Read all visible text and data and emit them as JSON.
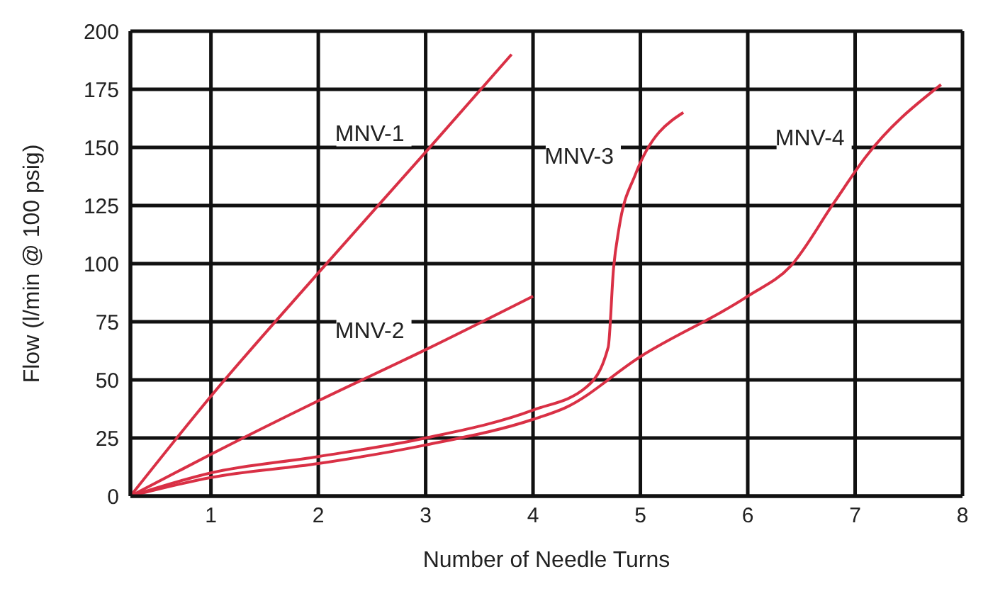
{
  "chart_data": {
    "type": "line",
    "xlabel": "Number of Needle Turns",
    "ylabel": "Flow (l/min @ 100 psig)",
    "xlim": [
      0.25,
      8
    ],
    "xticks": [
      1,
      2,
      3,
      4,
      5,
      6,
      7,
      8
    ],
    "ylim": [
      0,
      200
    ],
    "yticks": [
      0,
      25,
      50,
      75,
      100,
      125,
      150,
      175,
      200
    ],
    "grid": true,
    "legend": false,
    "marker": "none",
    "line_style": "solid",
    "series": [
      {
        "name": "MNV-1",
        "color": "#d93045",
        "x": [
          0.25,
          1,
          2,
          3,
          3.8
        ],
        "values": [
          0,
          43,
          96,
          148,
          190
        ]
      },
      {
        "name": "MNV-2",
        "color": "#d93045",
        "x": [
          0.25,
          1,
          2,
          3,
          4
        ],
        "values": [
          0,
          18,
          41,
          63,
          86
        ]
      },
      {
        "name": "MNV-3",
        "color": "#d93045",
        "x": [
          0.25,
          1,
          2,
          3,
          4,
          4.5,
          4.7,
          4.75,
          4.8,
          4.95,
          5.4
        ],
        "values": [
          0,
          10,
          17,
          25,
          37,
          47,
          64,
          98,
          115,
          138,
          165
        ]
      },
      {
        "name": "MNV-4",
        "color": "#d93045",
        "x": [
          0.25,
          1,
          2,
          3,
          4,
          4.3,
          5,
          6,
          6.4,
          6.8,
          7.1,
          7.8
        ],
        "values": [
          0,
          8,
          14,
          22,
          33,
          38,
          60,
          86,
          99,
          126,
          146,
          177
        ]
      }
    ]
  }
}
